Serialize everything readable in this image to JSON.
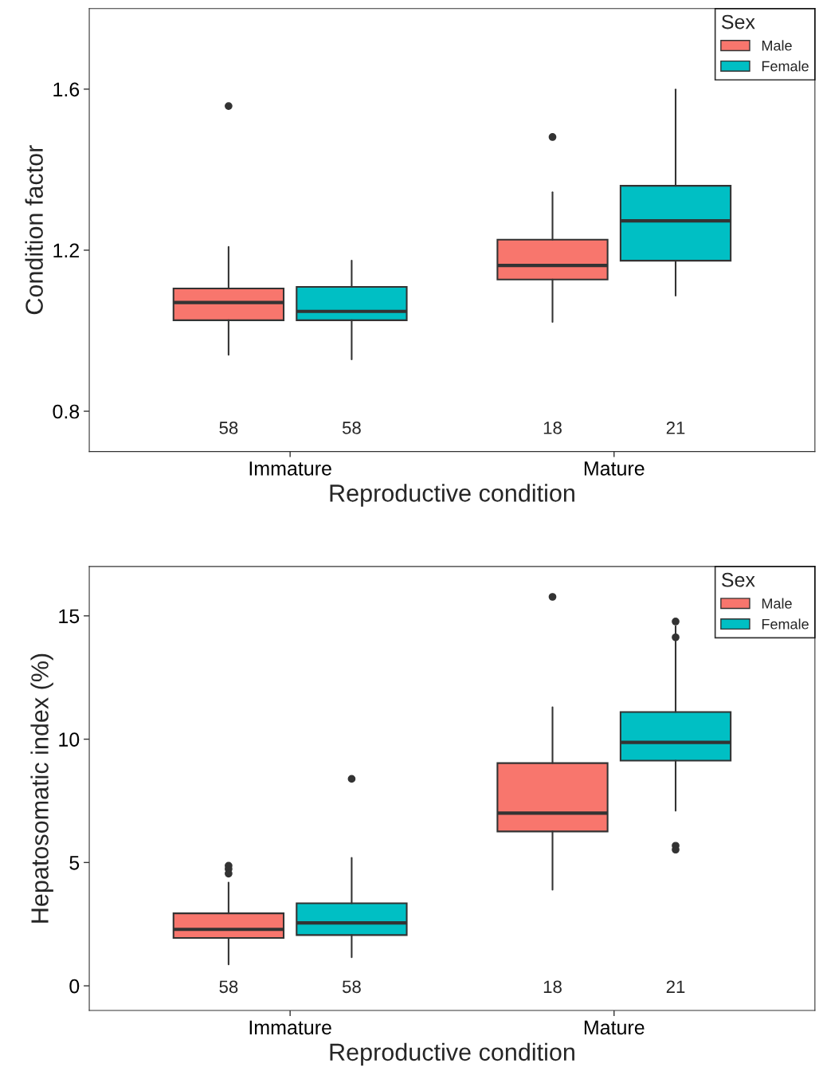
{
  "chart_data": [
    {
      "type": "box",
      "xlabel": "Reproductive condition",
      "ylabel": "Condition factor",
      "legend_title": "Sex",
      "legend": "top right",
      "grid": false,
      "categories": [
        "Immature",
        "Mature"
      ],
      "ylim": [
        0.7,
        1.8
      ],
      "yticks": [
        0.8,
        1.2,
        1.6
      ],
      "series": [
        {
          "name": "Male",
          "color": "#f8766d",
          "value_labels": [
            "58",
            "18"
          ],
          "boxes": [
            {
              "low": 0.94,
              "q1": 1.026,
              "median": 1.07,
              "q3": 1.105,
              "high": 1.208,
              "outliers": [
                1.558
              ]
            },
            {
              "low": 1.022,
              "q1": 1.127,
              "median": 1.162,
              "q3": 1.226,
              "high": 1.344,
              "outliers": [
                1.481
              ]
            }
          ]
        },
        {
          "name": "Female",
          "color": "#00bfc4",
          "value_labels": [
            "58",
            "21"
          ],
          "boxes": [
            {
              "low": 0.929,
              "q1": 1.026,
              "median": 1.048,
              "q3": 1.109,
              "high": 1.174
            },
            {
              "low": 1.087,
              "q1": 1.174,
              "median": 1.273,
              "q3": 1.36,
              "high": 1.599
            }
          ]
        }
      ]
    },
    {
      "type": "box",
      "xlabel": "Reproductive condition",
      "ylabel": "Hepatosomatic index (%)",
      "legend_title": "Sex",
      "legend": "top right",
      "grid": false,
      "categories": [
        "Immature",
        "Mature"
      ],
      "ylim": [
        -1,
        17
      ],
      "yticks": [
        0,
        5,
        10,
        15
      ],
      "series": [
        {
          "name": "Male",
          "color": "#f8766d",
          "value_labels": [
            "58",
            "18"
          ],
          "boxes": [
            {
              "low": 0.87,
              "q1": 1.94,
              "median": 2.29,
              "q3": 2.94,
              "high": 4.19,
              "outliers": [
                4.87,
                4.74,
                4.55
              ]
            },
            {
              "low": 3.9,
              "q1": 6.26,
              "median": 7.0,
              "q3": 9.03,
              "high": 11.29,
              "outliers": [
                15.77
              ]
            }
          ]
        },
        {
          "name": "Female",
          "color": "#00bfc4",
          "value_labels": [
            "58",
            "21"
          ],
          "boxes": [
            {
              "low": 1.16,
              "q1": 2.06,
              "median": 2.55,
              "q3": 3.35,
              "high": 5.19,
              "outliers": [
                8.39
              ]
            },
            {
              "low": 7.1,
              "q1": 9.13,
              "median": 9.87,
              "q3": 11.1,
              "high": 14.58,
              "outliers": [
                14.77,
                14.13,
                5.68,
                5.52
              ]
            }
          ]
        }
      ]
    }
  ]
}
